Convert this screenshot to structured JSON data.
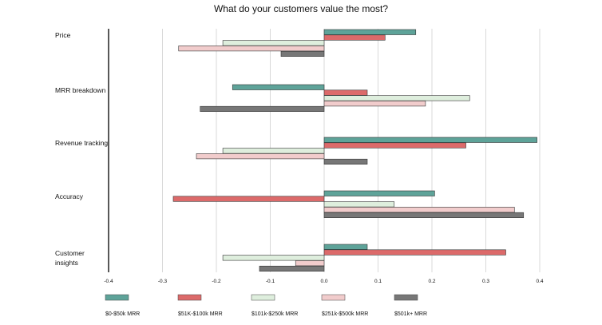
{
  "title": "What do your customers value the most?",
  "chart_data": {
    "type": "bar",
    "orientation": "horizontal",
    "title": "What do your customers value the most?",
    "categories": [
      [
        "Price"
      ],
      [
        "MRR breakdown"
      ],
      [
        "Revenue tracking"
      ],
      [
        "Accuracy"
      ],
      [
        "Customer",
        "insights"
      ]
    ],
    "series": [
      {
        "name": "$0-$50k MRR",
        "color": "#5ea399",
        "values": [
          0.17,
          -0.17,
          0.395,
          0.205,
          0.08
        ]
      },
      {
        "name": "$51K-$100k MRR",
        "color": "#dc6a6a",
        "values": [
          0.113,
          0.08,
          0.263,
          -0.28,
          0.337
        ]
      },
      {
        "name": "$101k-$250k MRR",
        "color": "#deeedd",
        "values": [
          -0.188,
          0.27,
          -0.188,
          0.13,
          -0.188
        ]
      },
      {
        "name": "$251k-$500k MRR",
        "color": "#f1cccc",
        "values": [
          -0.27,
          0.188,
          -0.237,
          0.353,
          -0.053
        ]
      },
      {
        "name": "$501k+ MRR",
        "color": "#777777",
        "values": [
          -0.08,
          -0.23,
          0.08,
          0.37,
          -0.12
        ]
      }
    ],
    "xlim": [
      -0.4,
      0.4
    ],
    "xticks": [
      "-0.4",
      "-0.3",
      "-0.2",
      "-0.1",
      "0.0",
      "0.1",
      "0.2",
      "0.3",
      "0.4"
    ],
    "xlabel": "",
    "ylabel": "",
    "grid": "vertical",
    "legend_position": "bottom"
  }
}
